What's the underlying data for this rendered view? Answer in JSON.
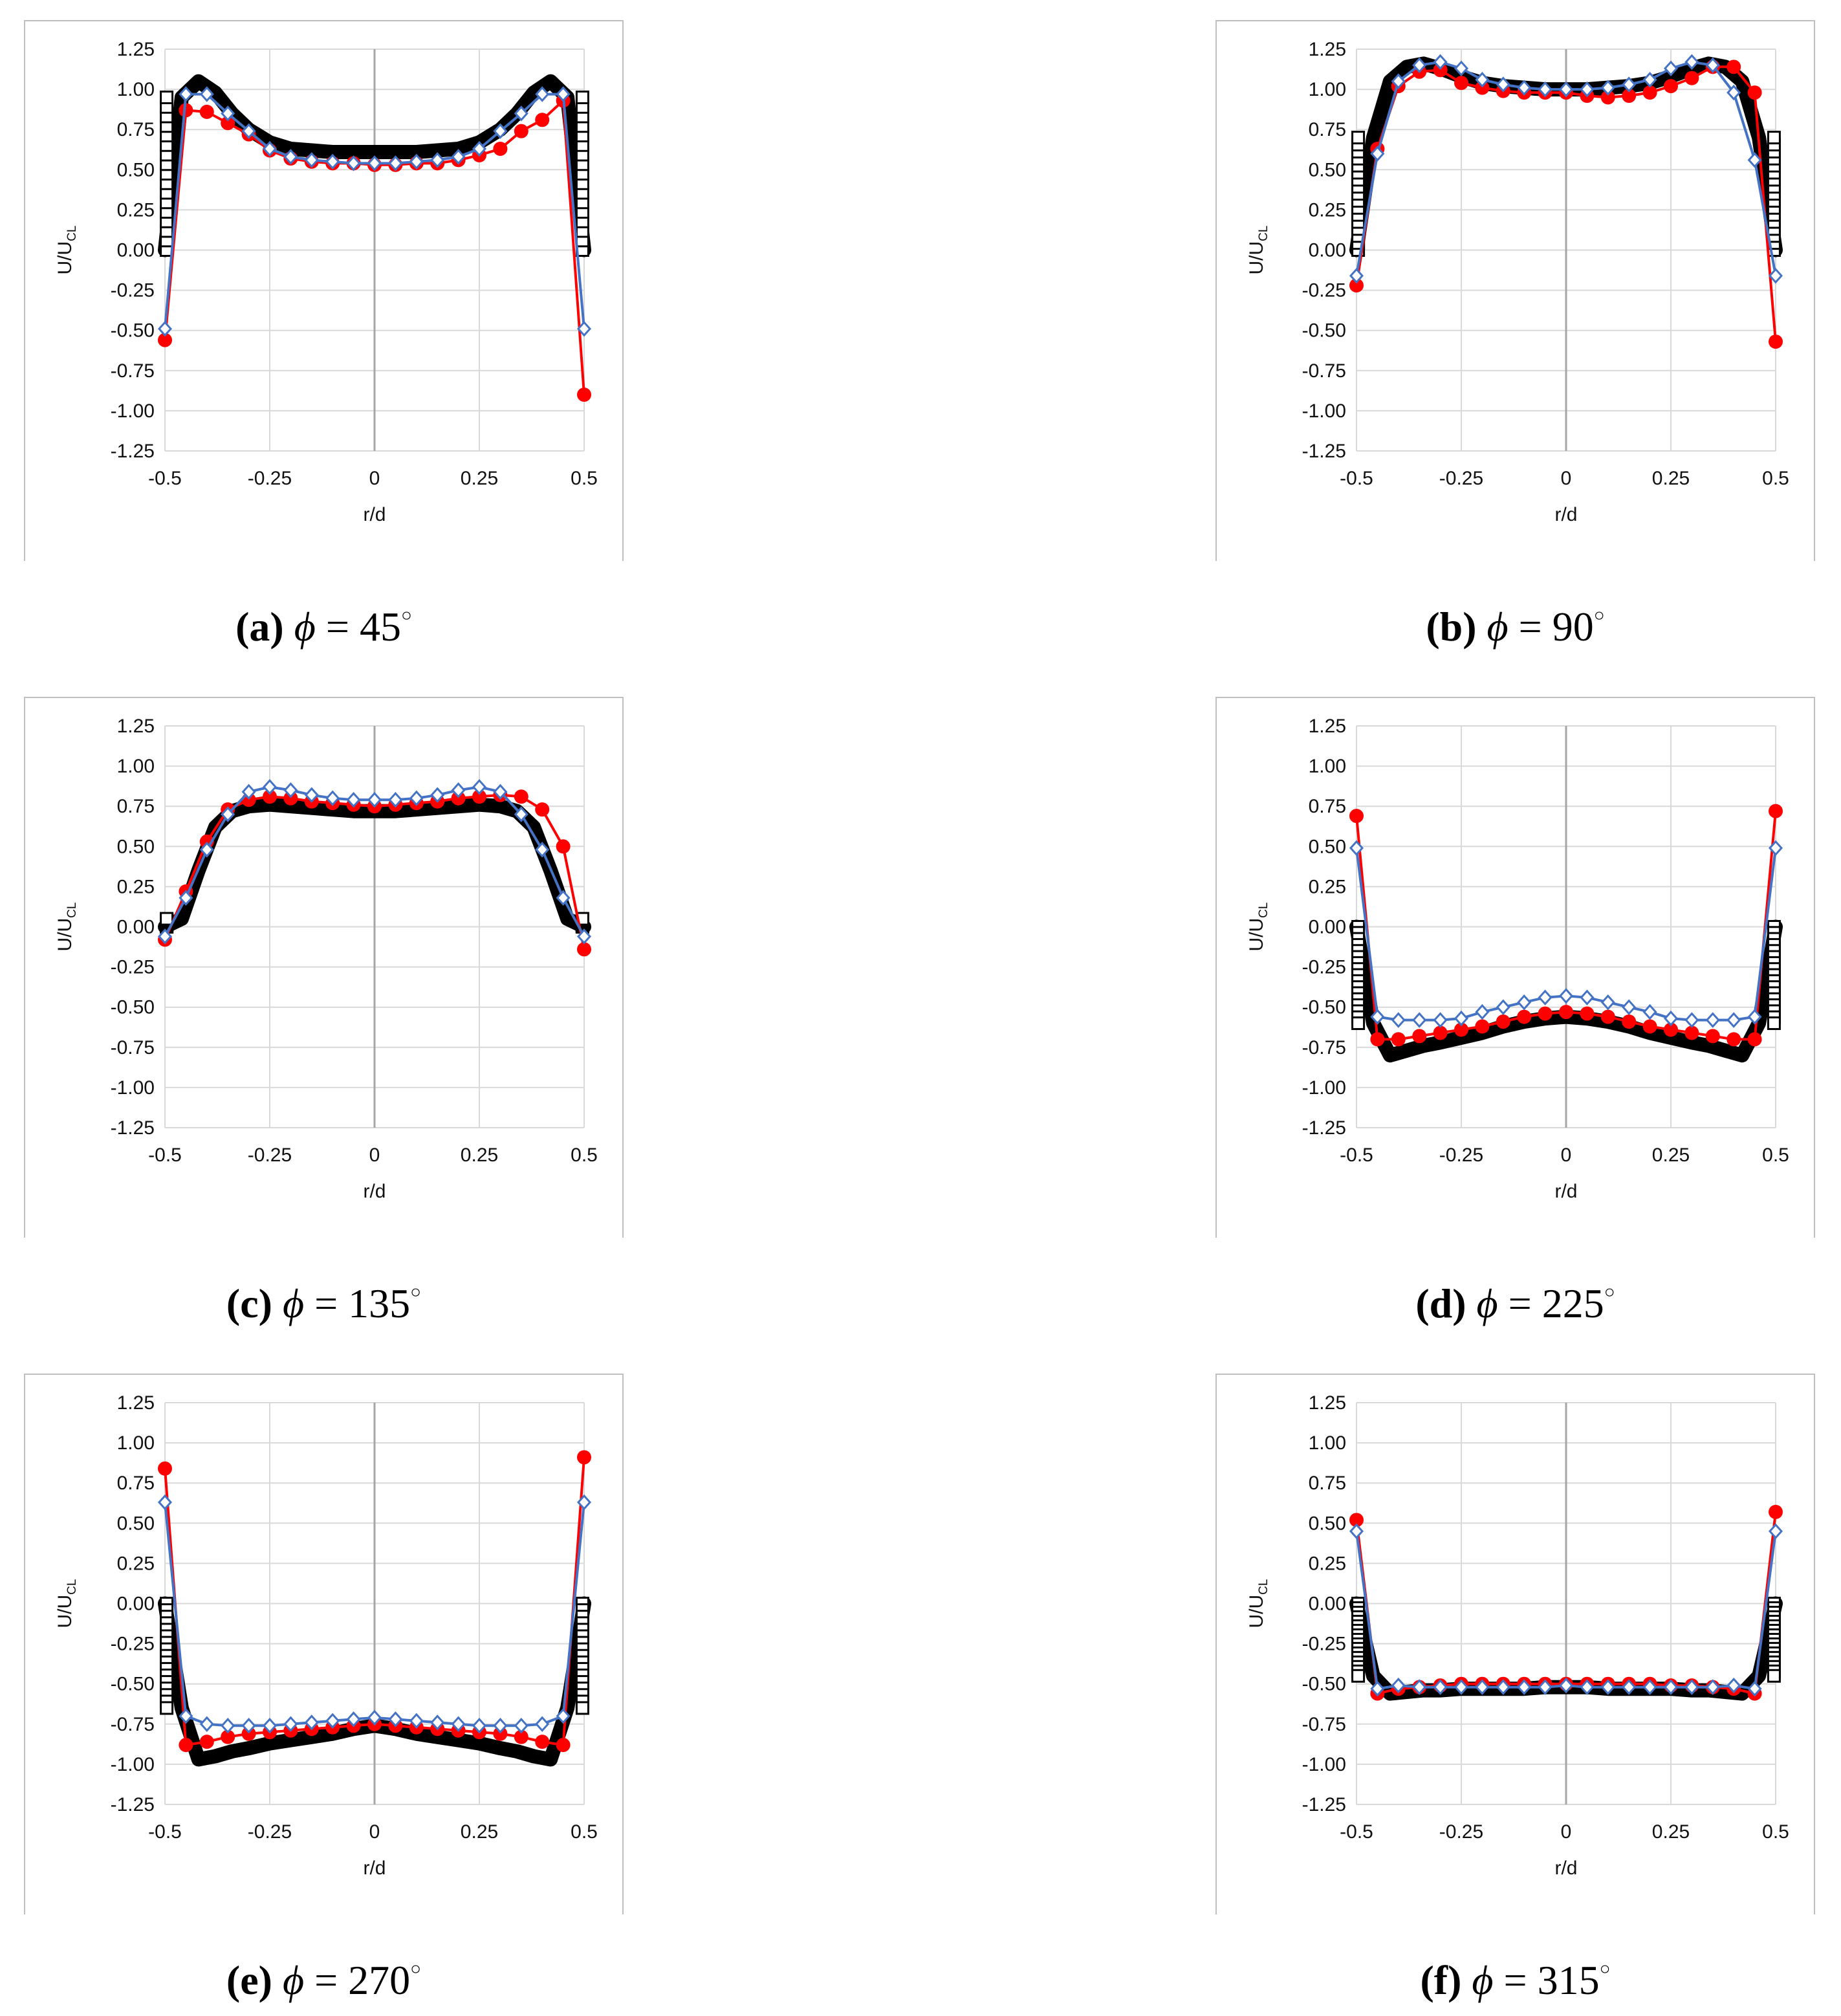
{
  "axis": {
    "xlabel": "r/d",
    "ylabel_main": "U/U",
    "ylabel_sub": "CL",
    "xticks": [
      "-0.5",
      "-0.25",
      "0",
      "0.25",
      "0.5"
    ],
    "yticks": [
      "1.25",
      "1.00",
      "0.75",
      "0.50",
      "0.25",
      "0.00",
      "-0.25",
      "-0.50",
      "-0.75",
      "-1.00",
      "-1.25"
    ]
  },
  "colors": {
    "red": "#ff0000",
    "blue": "#4472c4",
    "black": "#000000",
    "grid": "#d9d9d9",
    "frame": "#bfbfbf"
  },
  "chart_data": [
    {
      "type": "line",
      "caption_label": "(a)",
      "caption_angle": "45",
      "xlim": [
        -0.5,
        0.5
      ],
      "ylim": [
        -1.25,
        1.25
      ],
      "grid": true,
      "series": [
        {
          "marker": "black-square",
          "x": [
            -0.5,
            -0.46,
            -0.42,
            -0.38,
            -0.34,
            -0.3,
            -0.25,
            -0.2,
            -0.15,
            -0.1,
            -0.05,
            0,
            0.05,
            0.1,
            0.15,
            0.2,
            0.25,
            0.3,
            0.34,
            0.38,
            0.42,
            0.46,
            0.5
          ],
          "y": [
            0.0,
            0.95,
            1.05,
            0.98,
            0.85,
            0.75,
            0.67,
            0.63,
            0.62,
            0.61,
            0.61,
            0.61,
            0.61,
            0.61,
            0.62,
            0.63,
            0.67,
            0.75,
            0.85,
            0.98,
            1.05,
            0.95,
            0.0
          ]
        },
        {
          "marker": "red-circle",
          "x": [
            -0.5,
            -0.45,
            -0.4,
            -0.35,
            -0.3,
            -0.25,
            -0.2,
            -0.15,
            -0.1,
            -0.05,
            0,
            0.05,
            0.1,
            0.15,
            0.2,
            0.25,
            0.3,
            0.35,
            0.4,
            0.45,
            0.5
          ],
          "y": [
            -0.56,
            0.87,
            0.86,
            0.79,
            0.72,
            0.62,
            0.57,
            0.55,
            0.54,
            0.54,
            0.53,
            0.53,
            0.54,
            0.54,
            0.56,
            0.59,
            0.63,
            0.74,
            0.81,
            0.93,
            -0.9
          ]
        },
        {
          "marker": "blue-diamond",
          "x": [
            -0.5,
            -0.45,
            -0.4,
            -0.35,
            -0.3,
            -0.25,
            -0.2,
            -0.15,
            -0.1,
            -0.05,
            0,
            0.05,
            0.1,
            0.15,
            0.2,
            0.25,
            0.3,
            0.35,
            0.4,
            0.45,
            0.5
          ],
          "y": [
            -0.49,
            0.97,
            0.97,
            0.85,
            0.74,
            0.63,
            0.58,
            0.56,
            0.55,
            0.54,
            0.54,
            0.54,
            0.55,
            0.56,
            0.58,
            0.63,
            0.74,
            0.85,
            0.97,
            0.97,
            -0.49
          ]
        }
      ]
    },
    {
      "type": "line",
      "caption_label": "(b)",
      "caption_angle": "90",
      "xlim": [
        -0.5,
        0.5
      ],
      "ylim": [
        -1.25,
        1.25
      ],
      "grid": true,
      "series": [
        {
          "marker": "black-square",
          "x": [
            -0.5,
            -0.46,
            -0.42,
            -0.38,
            -0.34,
            -0.3,
            -0.25,
            -0.2,
            -0.15,
            -0.1,
            -0.05,
            0,
            0.05,
            0.1,
            0.15,
            0.2,
            0.25,
            0.3,
            0.34,
            0.38,
            0.42,
            0.46,
            0.5
          ],
          "y": [
            0.0,
            0.7,
            1.05,
            1.14,
            1.16,
            1.13,
            1.08,
            1.04,
            1.02,
            1.01,
            1.0,
            1.0,
            1.0,
            1.01,
            1.02,
            1.04,
            1.08,
            1.13,
            1.16,
            1.14,
            1.05,
            0.7,
            0.0
          ]
        },
        {
          "marker": "red-circle",
          "x": [
            -0.5,
            -0.45,
            -0.4,
            -0.35,
            -0.3,
            -0.25,
            -0.2,
            -0.15,
            -0.1,
            -0.05,
            0,
            0.05,
            0.1,
            0.15,
            0.2,
            0.25,
            0.3,
            0.35,
            0.4,
            0.45,
            0.5
          ],
          "y": [
            -0.22,
            0.63,
            1.02,
            1.11,
            1.12,
            1.04,
            1.01,
            0.99,
            0.98,
            0.98,
            0.98,
            0.96,
            0.95,
            0.96,
            0.98,
            1.02,
            1.07,
            1.14,
            1.14,
            0.98,
            -0.57
          ]
        },
        {
          "marker": "blue-diamond",
          "x": [
            -0.5,
            -0.45,
            -0.4,
            -0.35,
            -0.3,
            -0.25,
            -0.2,
            -0.15,
            -0.1,
            -0.05,
            0,
            0.05,
            0.1,
            0.15,
            0.2,
            0.25,
            0.3,
            0.35,
            0.4,
            0.45,
            0.5
          ],
          "y": [
            -0.16,
            0.6,
            1.05,
            1.15,
            1.17,
            1.13,
            1.06,
            1.03,
            1.01,
            1.0,
            1.0,
            1.0,
            1.01,
            1.03,
            1.06,
            1.13,
            1.17,
            1.15,
            0.98,
            0.56,
            -0.16
          ]
        }
      ]
    },
    {
      "type": "line",
      "caption_label": "(c)",
      "caption_angle": "135",
      "xlim": [
        -0.5,
        0.5
      ],
      "ylim": [
        -1.25,
        1.25
      ],
      "grid": true,
      "series": [
        {
          "marker": "black-square",
          "x": [
            -0.5,
            -0.46,
            -0.42,
            -0.38,
            -0.34,
            -0.3,
            -0.25,
            -0.2,
            -0.15,
            -0.1,
            -0.05,
            0,
            0.05,
            0.1,
            0.15,
            0.2,
            0.25,
            0.3,
            0.34,
            0.38,
            0.42,
            0.46,
            0.5
          ],
          "y": [
            0.0,
            0.05,
            0.35,
            0.62,
            0.72,
            0.75,
            0.76,
            0.75,
            0.74,
            0.73,
            0.72,
            0.72,
            0.72,
            0.73,
            0.74,
            0.75,
            0.76,
            0.75,
            0.72,
            0.62,
            0.35,
            0.05,
            0.0
          ]
        },
        {
          "marker": "red-circle",
          "x": [
            -0.5,
            -0.45,
            -0.4,
            -0.35,
            -0.3,
            -0.25,
            -0.2,
            -0.15,
            -0.1,
            -0.05,
            0,
            0.05,
            0.1,
            0.15,
            0.2,
            0.25,
            0.3,
            0.35,
            0.4,
            0.45,
            0.5
          ],
          "y": [
            -0.08,
            0.22,
            0.53,
            0.73,
            0.79,
            0.81,
            0.8,
            0.78,
            0.77,
            0.76,
            0.75,
            0.76,
            0.77,
            0.78,
            0.8,
            0.81,
            0.82,
            0.81,
            0.73,
            0.5,
            -0.14
          ]
        },
        {
          "marker": "blue-diamond",
          "x": [
            -0.5,
            -0.45,
            -0.4,
            -0.35,
            -0.3,
            -0.25,
            -0.2,
            -0.15,
            -0.1,
            -0.05,
            0,
            0.05,
            0.1,
            0.15,
            0.2,
            0.25,
            0.3,
            0.35,
            0.4,
            0.45,
            0.5
          ],
          "y": [
            -0.06,
            0.18,
            0.48,
            0.7,
            0.84,
            0.87,
            0.85,
            0.82,
            0.8,
            0.79,
            0.79,
            0.79,
            0.8,
            0.82,
            0.85,
            0.87,
            0.84,
            0.7,
            0.48,
            0.18,
            -0.06
          ]
        }
      ]
    },
    {
      "type": "line",
      "caption_label": "(d)",
      "caption_angle": "225",
      "xlim": [
        -0.5,
        0.5
      ],
      "ylim": [
        -1.25,
        1.25
      ],
      "grid": true,
      "series": [
        {
          "marker": "black-square",
          "x": [
            -0.5,
            -0.46,
            -0.42,
            -0.38,
            -0.34,
            -0.3,
            -0.25,
            -0.2,
            -0.15,
            -0.1,
            -0.05,
            0,
            0.05,
            0.1,
            0.15,
            0.2,
            0.25,
            0.3,
            0.34,
            0.38,
            0.42,
            0.46,
            0.5
          ],
          "y": [
            0.0,
            -0.6,
            -0.8,
            -0.77,
            -0.74,
            -0.72,
            -0.69,
            -0.66,
            -0.62,
            -0.59,
            -0.57,
            -0.56,
            -0.57,
            -0.59,
            -0.62,
            -0.66,
            -0.69,
            -0.72,
            -0.74,
            -0.77,
            -0.8,
            -0.6,
            0.0
          ]
        },
        {
          "marker": "red-circle",
          "x": [
            -0.5,
            -0.45,
            -0.4,
            -0.35,
            -0.3,
            -0.25,
            -0.2,
            -0.15,
            -0.1,
            -0.05,
            0,
            0.05,
            0.1,
            0.15,
            0.2,
            0.25,
            0.3,
            0.35,
            0.4,
            0.45,
            0.5
          ],
          "y": [
            0.69,
            -0.7,
            -0.7,
            -0.68,
            -0.66,
            -0.64,
            -0.62,
            -0.59,
            -0.56,
            -0.54,
            -0.53,
            -0.54,
            -0.56,
            -0.59,
            -0.62,
            -0.64,
            -0.66,
            -0.68,
            -0.7,
            -0.7,
            0.72
          ]
        },
        {
          "marker": "blue-diamond",
          "x": [
            -0.5,
            -0.45,
            -0.4,
            -0.35,
            -0.3,
            -0.25,
            -0.2,
            -0.15,
            -0.1,
            -0.05,
            0,
            0.05,
            0.1,
            0.15,
            0.2,
            0.25,
            0.3,
            0.35,
            0.4,
            0.45,
            0.5
          ],
          "y": [
            0.49,
            -0.56,
            -0.58,
            -0.58,
            -0.58,
            -0.57,
            -0.53,
            -0.5,
            -0.47,
            -0.44,
            -0.43,
            -0.44,
            -0.47,
            -0.5,
            -0.53,
            -0.57,
            -0.58,
            -0.58,
            -0.58,
            -0.56,
            0.49
          ]
        }
      ]
    },
    {
      "type": "line",
      "caption_label": "(e)",
      "caption_angle": "270",
      "xlim": [
        -0.5,
        0.5
      ],
      "ylim": [
        -1.25,
        1.25
      ],
      "grid": true,
      "series": [
        {
          "marker": "black-square",
          "x": [
            -0.5,
            -0.46,
            -0.42,
            -0.38,
            -0.34,
            -0.3,
            -0.25,
            -0.2,
            -0.15,
            -0.1,
            -0.05,
            0,
            0.05,
            0.1,
            0.15,
            0.2,
            0.25,
            0.3,
            0.34,
            0.38,
            0.42,
            0.46,
            0.5
          ],
          "y": [
            0.0,
            -0.65,
            -0.97,
            -0.95,
            -0.92,
            -0.9,
            -0.87,
            -0.85,
            -0.83,
            -0.81,
            -0.78,
            -0.76,
            -0.78,
            -0.81,
            -0.83,
            -0.85,
            -0.87,
            -0.9,
            -0.92,
            -0.95,
            -0.97,
            -0.65,
            0.0
          ]
        },
        {
          "marker": "red-circle",
          "x": [
            -0.5,
            -0.45,
            -0.4,
            -0.35,
            -0.3,
            -0.25,
            -0.2,
            -0.15,
            -0.1,
            -0.05,
            0,
            0.05,
            0.1,
            0.15,
            0.2,
            0.25,
            0.3,
            0.35,
            0.4,
            0.45,
            0.5
          ],
          "y": [
            0.84,
            -0.88,
            -0.86,
            -0.83,
            -0.81,
            -0.8,
            -0.79,
            -0.78,
            -0.77,
            -0.76,
            -0.75,
            -0.76,
            -0.77,
            -0.78,
            -0.79,
            -0.8,
            -0.81,
            -0.83,
            -0.86,
            -0.88,
            0.91
          ]
        },
        {
          "marker": "blue-diamond",
          "x": [
            -0.5,
            -0.45,
            -0.4,
            -0.35,
            -0.3,
            -0.25,
            -0.2,
            -0.15,
            -0.1,
            -0.05,
            0,
            0.05,
            0.1,
            0.15,
            0.2,
            0.25,
            0.3,
            0.35,
            0.4,
            0.45,
            0.5
          ],
          "y": [
            0.63,
            -0.7,
            -0.75,
            -0.76,
            -0.76,
            -0.76,
            -0.75,
            -0.74,
            -0.73,
            -0.72,
            -0.71,
            -0.72,
            -0.73,
            -0.74,
            -0.75,
            -0.76,
            -0.76,
            -0.76,
            -0.75,
            -0.7,
            0.63
          ]
        }
      ]
    },
    {
      "type": "line",
      "caption_label": "(f)",
      "caption_angle": "315",
      "xlim": [
        -0.5,
        0.5
      ],
      "ylim": [
        -1.25,
        1.25
      ],
      "grid": true,
      "series": [
        {
          "marker": "black-square",
          "x": [
            -0.5,
            -0.46,
            -0.42,
            -0.38,
            -0.34,
            -0.3,
            -0.25,
            -0.2,
            -0.15,
            -0.1,
            -0.05,
            0,
            0.05,
            0.1,
            0.15,
            0.2,
            0.25,
            0.3,
            0.34,
            0.38,
            0.42,
            0.46,
            0.5
          ],
          "y": [
            0.0,
            -0.45,
            -0.56,
            -0.55,
            -0.54,
            -0.54,
            -0.53,
            -0.53,
            -0.53,
            -0.53,
            -0.52,
            -0.52,
            -0.52,
            -0.53,
            -0.53,
            -0.53,
            -0.53,
            -0.54,
            -0.54,
            -0.55,
            -0.56,
            -0.45,
            0.0
          ]
        },
        {
          "marker": "red-circle",
          "x": [
            -0.5,
            -0.45,
            -0.4,
            -0.35,
            -0.3,
            -0.25,
            -0.2,
            -0.15,
            -0.1,
            -0.05,
            0,
            0.05,
            0.1,
            0.15,
            0.2,
            0.25,
            0.3,
            0.35,
            0.4,
            0.45,
            0.5
          ],
          "y": [
            0.52,
            -0.56,
            -0.53,
            -0.52,
            -0.51,
            -0.5,
            -0.5,
            -0.5,
            -0.5,
            -0.5,
            -0.5,
            -0.5,
            -0.5,
            -0.5,
            -0.5,
            -0.51,
            -0.51,
            -0.52,
            -0.53,
            -0.56,
            0.57
          ]
        },
        {
          "marker": "blue-diamond",
          "x": [
            -0.5,
            -0.45,
            -0.4,
            -0.35,
            -0.3,
            -0.25,
            -0.2,
            -0.15,
            -0.1,
            -0.05,
            0,
            0.05,
            0.1,
            0.15,
            0.2,
            0.25,
            0.3,
            0.35,
            0.4,
            0.45,
            0.5
          ],
          "y": [
            0.45,
            -0.53,
            -0.51,
            -0.52,
            -0.52,
            -0.52,
            -0.52,
            -0.52,
            -0.52,
            -0.52,
            -0.51,
            -0.52,
            -0.52,
            -0.52,
            -0.52,
            -0.52,
            -0.52,
            -0.52,
            -0.51,
            -0.53,
            0.45
          ]
        }
      ]
    }
  ]
}
